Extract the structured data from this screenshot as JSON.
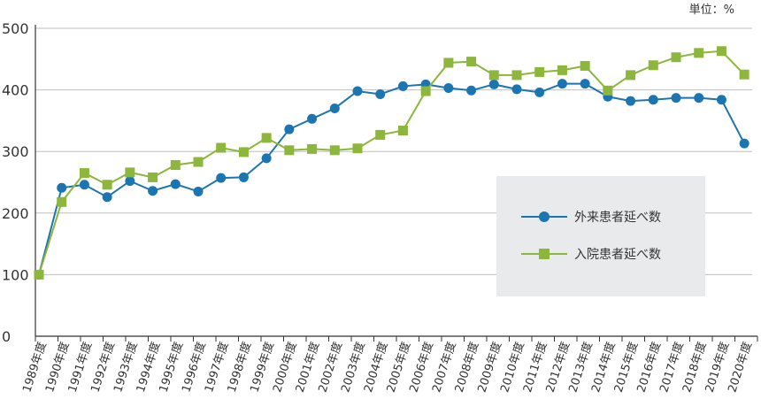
{
  "unit_label": "単位：%",
  "colors": {
    "series1": "#1b75b0",
    "series2": "#8db63c",
    "grid": "#bfbfbf",
    "axis": "#333333"
  },
  "chart_data": {
    "type": "line",
    "x": [
      "1989年度",
      "1990年度",
      "1991年度",
      "1992年度",
      "1993年度",
      "1994年度",
      "1995年度",
      "1996年度",
      "1997年度",
      "1998年度",
      "1999年度",
      "2000年度",
      "2001年度",
      "2002年度",
      "2003年度",
      "2004年度",
      "2005年度",
      "2006年度",
      "2007年度",
      "2008年度",
      "2009年度",
      "2010年度",
      "2011年度",
      "2012年度",
      "2013年度",
      "2014年度",
      "2015年度",
      "2016年度",
      "2017年度",
      "2018年度",
      "2019年度",
      "2020年度"
    ],
    "ylim": [
      0,
      500
    ],
    "yticks": [
      0,
      100,
      200,
      300,
      400,
      500
    ],
    "grid": true,
    "legend_position": "center-right",
    "series": [
      {
        "name": "外来患者延べ数",
        "marker": "circle",
        "values": [
          100,
          241,
          246,
          226,
          252,
          236,
          247,
          235,
          257,
          258,
          289,
          336,
          353,
          370,
          398,
          393,
          406,
          409,
          403,
          399,
          409,
          401,
          396,
          410,
          410,
          389,
          382,
          384,
          387,
          387,
          384,
          313
        ]
      },
      {
        "name": "入院患者延べ数",
        "marker": "square",
        "values": [
          100,
          218,
          265,
          246,
          266,
          258,
          278,
          283,
          306,
          299,
          322,
          302,
          304,
          302,
          305,
          327,
          334,
          398,
          444,
          446,
          424,
          424,
          429,
          432,
          439,
          399,
          424,
          440,
          453,
          460,
          463,
          425
        ]
      }
    ]
  }
}
